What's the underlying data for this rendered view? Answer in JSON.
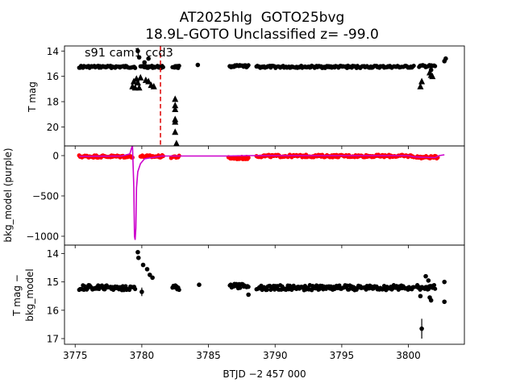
{
  "figure": {
    "title_line1": "AT2025hlg  GOTO25bvg",
    "title_line2": "18.9L-GOTO Unclassified z= -99.0",
    "xlabel": "BTJD −2 457 000",
    "colors": {
      "points": "#000000",
      "marker": "#dd0000",
      "bkg_data": "#ff0000",
      "bkg_model": "#cc00cc"
    }
  },
  "chart_data": [
    {
      "type": "scatter",
      "panel": "top",
      "ylabel": "T mag",
      "annotation": "s91 cam1 ccd3",
      "y_inverted": true,
      "xlim": [
        3774.2,
        3804.2
      ],
      "ylim": [
        21.5,
        13.6
      ],
      "xticks": [
        3775,
        3780,
        3785,
        3790,
        3795,
        3800
      ],
      "yticks": [
        14,
        16,
        18,
        20
      ],
      "marker_x": 3781.4,
      "segments": [
        {
          "x_start": 3775.3,
          "x_end": 3779.5,
          "mag": 15.25
        },
        {
          "x_start": 3779.9,
          "x_end": 3781.6,
          "mag": 15.25
        },
        {
          "x_start": 3782.3,
          "x_end": 3782.8,
          "mag": 15.25
        },
        {
          "x_start": 3786.7,
          "x_end": 3788.0,
          "mag": 15.2
        },
        {
          "x_start": 3788.6,
          "x_end": 3800.4,
          "mag": 15.25
        },
        {
          "x_start": 3800.8,
          "x_end": 3802.0,
          "mag": 15.2
        }
      ],
      "points": [
        {
          "x": 3779.7,
          "y": 14.0
        },
        {
          "x": 3779.8,
          "y": 14.5
        },
        {
          "x": 3780.2,
          "y": 14.9
        },
        {
          "x": 3780.5,
          "y": 14.6
        },
        {
          "x": 3784.2,
          "y": 15.1
        },
        {
          "x": 3786.6,
          "y": 15.2
        },
        {
          "x": 3802.7,
          "y": 14.8
        },
        {
          "x": 3802.8,
          "y": 14.6
        },
        {
          "x": 3801.7,
          "y": 15.5
        }
      ],
      "upper_limits": [
        {
          "x": 3779.3,
          "y": 16.8
        },
        {
          "x": 3779.4,
          "y": 16.4
        },
        {
          "x": 3779.5,
          "y": 16.9
        },
        {
          "x": 3779.6,
          "y": 16.2
        },
        {
          "x": 3779.7,
          "y": 16.5
        },
        {
          "x": 3779.8,
          "y": 16.9
        },
        {
          "x": 3779.9,
          "y": 16.1
        },
        {
          "x": 3780.3,
          "y": 16.3
        },
        {
          "x": 3780.5,
          "y": 16.4
        },
        {
          "x": 3780.7,
          "y": 16.7
        },
        {
          "x": 3780.9,
          "y": 16.8
        },
        {
          "x": 3782.5,
          "y": 17.8
        },
        {
          "x": 3782.5,
          "y": 18.3
        },
        {
          "x": 3782.5,
          "y": 18.6
        },
        {
          "x": 3782.5,
          "y": 19.4
        },
        {
          "x": 3782.5,
          "y": 19.6
        },
        {
          "x": 3782.5,
          "y": 20.4
        },
        {
          "x": 3782.6,
          "y": 21.3
        },
        {
          "x": 3800.9,
          "y": 16.8
        },
        {
          "x": 3801.0,
          "y": 16.4
        },
        {
          "x": 3801.6,
          "y": 15.7
        },
        {
          "x": 3801.7,
          "y": 15.9
        },
        {
          "x": 3801.8,
          "y": 16.0
        }
      ]
    },
    {
      "type": "line",
      "panel": "middle",
      "ylabel": "bkg_model (purple)",
      "xlim": [
        3774.2,
        3804.2
      ],
      "ylim": [
        -1110,
        120
      ],
      "yticks": [
        0,
        -500,
        -1000
      ],
      "xticks": [
        3775,
        3780,
        3785,
        3790,
        3795,
        3800
      ],
      "data_segments": [
        {
          "x_start": 3775.3,
          "x_end": 3779.3,
          "value": -10
        },
        {
          "x_start": 3779.9,
          "x_end": 3781.6,
          "value": -10
        },
        {
          "x_start": 3782.2,
          "x_end": 3782.8,
          "value": -15
        },
        {
          "x_start": 3786.5,
          "x_end": 3788.0,
          "value": -30
        },
        {
          "x_start": 3788.6,
          "x_end": 3800.4,
          "value": -5
        },
        {
          "x_start": 3800.6,
          "x_end": 3802.2,
          "value": -20
        }
      ],
      "series": [
        {
          "x": [
            3775.3,
            3778.5,
            3779.1,
            3779.3,
            3779.4,
            3779.45,
            3779.5,
            3779.55,
            3779.6,
            3779.7,
            3779.9,
            3780.2,
            3781.5,
            3786.5,
            3788.0,
            3800.0,
            3800.4,
            3801.0,
            3802.0,
            3802.3,
            3802.7
          ],
          "y": [
            -10,
            -5,
            20,
            130,
            -400,
            -1000,
            -1045,
            -900,
            -400,
            -200,
            -100,
            -40,
            -5,
            -5,
            0,
            0,
            -15,
            -20,
            -25,
            0,
            10
          ]
        }
      ]
    },
    {
      "type": "scatter",
      "panel": "bottom",
      "ylabel_line1": "T mag −",
      "ylabel_line2": "bkg_model",
      "y_inverted": true,
      "xlim": [
        3774.2,
        3804.2
      ],
      "ylim": [
        17.2,
        13.7
      ],
      "yticks": [
        14,
        15,
        16,
        17
      ],
      "xticks": [
        3775,
        3780,
        3785,
        3790,
        3795,
        3800
      ],
      "segments": [
        {
          "x_start": 3775.3,
          "x_end": 3779.5,
          "mag": 15.2
        },
        {
          "x_start": 3782.3,
          "x_end": 3782.8,
          "mag": 15.2
        },
        {
          "x_start": 3786.6,
          "x_end": 3788.0,
          "mag": 15.15
        },
        {
          "x_start": 3788.6,
          "x_end": 3800.4,
          "mag": 15.2
        },
        {
          "x_start": 3800.6,
          "x_end": 3802.0,
          "mag": 15.2
        }
      ],
      "points": [
        {
          "x": 3779.7,
          "y": 13.95
        },
        {
          "x": 3779.75,
          "y": 14.15
        },
        {
          "x": 3780.1,
          "y": 14.4
        },
        {
          "x": 3780.4,
          "y": 14.55
        },
        {
          "x": 3780.6,
          "y": 14.75
        },
        {
          "x": 3780.8,
          "y": 14.85
        },
        {
          "x": 3780.0,
          "y": 15.35
        },
        {
          "x": 3784.3,
          "y": 15.1
        },
        {
          "x": 3788.0,
          "y": 15.45
        },
        {
          "x": 3801.0,
          "y": 16.65
        },
        {
          "x": 3801.3,
          "y": 14.8
        },
        {
          "x": 3801.6,
          "y": 15.55
        },
        {
          "x": 3801.7,
          "y": 15.65
        },
        {
          "x": 3802.7,
          "y": 15.0
        },
        {
          "x": 3802.7,
          "y": 15.7
        },
        {
          "x": 3801.5,
          "y": 14.95
        },
        {
          "x": 3800.9,
          "y": 15.5
        }
      ]
    }
  ]
}
